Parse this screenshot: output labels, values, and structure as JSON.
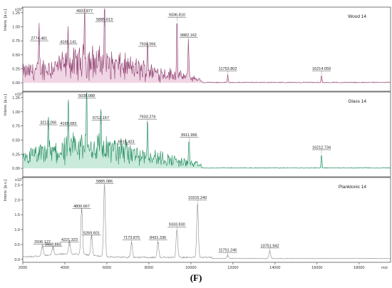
{
  "figure": {
    "caption": "(F)"
  },
  "chart_data": [
    {
      "type": "line",
      "series_name": "Wood 14",
      "color": "#8b3a6b",
      "fill": "#e3b3cf",
      "ylabel": "Intens. [a.u.]",
      "y_multiplier": "x10",
      "y_exponent": "4",
      "xlim": [
        2000,
        19500
      ],
      "ylim": [
        -0.15,
        1.35
      ],
      "yticks": [
        "0.00",
        "0.25",
        "0.50",
        "0.75",
        "1.00",
        "1.25"
      ],
      "ytick_values": [
        0,
        0.25,
        0.5,
        0.75,
        1.0,
        1.25
      ],
      "peaks": [
        {
          "x": 2774.481,
          "y": 0.68,
          "label": "2774.481"
        },
        {
          "x": 4165.141,
          "y": 0.62,
          "label": "4165.141"
        },
        {
          "x": 4937.877,
          "y": 1.2,
          "label": "4937.877"
        },
        {
          "x": 5885.613,
          "y": 1.02,
          "label": "5885.613"
        },
        {
          "x": 7934.066,
          "y": 0.58,
          "label": "7934.066"
        },
        {
          "x": 9336.81,
          "y": 1.1,
          "label": "9336.810"
        },
        {
          "x": 9882.162,
          "y": 0.74,
          "label": "9882.162"
        },
        {
          "x": 11753.802,
          "y": 0.14,
          "label": "11753.802"
        },
        {
          "x": 16214.059,
          "y": 0.14,
          "label": "16214.059"
        }
      ]
    },
    {
      "type": "line",
      "series_name": "Glass 14",
      "color": "#1e8a5c",
      "fill": "#9fd9bd",
      "ylabel": "Intens. [a.u.]",
      "y_multiplier": "x10",
      "y_exponent": "4",
      "xlim": [
        2000,
        19500
      ],
      "ylim": [
        -0.15,
        1.35
      ],
      "yticks": [
        "0.00",
        "0.25",
        "0.50",
        "0.75",
        "1.00",
        "1.25"
      ],
      "ytick_values": [
        0,
        0.25,
        0.5,
        0.75,
        1.0,
        1.25
      ],
      "peaks": [
        {
          "x": 3213.266,
          "y": 0.7,
          "label": "3213.266"
        },
        {
          "x": 4165.083,
          "y": 0.68,
          "label": "4165.083"
        },
        {
          "x": 5038.088,
          "y": 1.22,
          "label": "5038.088"
        },
        {
          "x": 5712.157,
          "y": 0.78,
          "label": "5712.157"
        },
        {
          "x": 6915.423,
          "y": 0.36,
          "label": "6915.423"
        },
        {
          "x": 7933.276,
          "y": 0.8,
          "label": "7933.276"
        },
        {
          "x": 9911.996,
          "y": 0.48,
          "label": "9911.996"
        },
        {
          "x": 16212.734,
          "y": 0.26,
          "label": "16212.734"
        }
      ]
    },
    {
      "type": "line",
      "series_name": "Planktonic 14",
      "color": "#8c8c8c",
      "fill": "none",
      "ylabel": "Intens. [a.u.]",
      "y_multiplier": "x10",
      "y_exponent": "4",
      "xlabel": "m/z",
      "xlim": [
        2000,
        19500
      ],
      "ylim": [
        -0.1,
        2.75
      ],
      "yticks": [
        "0.0",
        "0.5",
        "1.0",
        "1.5",
        "2.0",
        "2.5"
      ],
      "ytick_values": [
        0,
        0.5,
        1.0,
        1.5,
        2.0,
        2.5
      ],
      "xticks": [
        "2000",
        "4000",
        "6000",
        "8000",
        "10000",
        "12000",
        "14000",
        "16000",
        "18000"
      ],
      "xtick_values": [
        2000,
        4000,
        6000,
        8000,
        10000,
        12000,
        14000,
        16000,
        18000
      ],
      "peaks": [
        {
          "x": 2936.127,
          "y": 0.38,
          "label": "2936.127"
        },
        {
          "x": 3433.883,
          "y": 0.3,
          "label": "3433.883"
        },
        {
          "x": 4221.323,
          "y": 0.45,
          "label": "4221.323"
        },
        {
          "x": 4800.667,
          "y": 1.58,
          "label": "4800.667"
        },
        {
          "x": 5269.601,
          "y": 0.68,
          "label": "5269.601"
        },
        {
          "x": 5885.086,
          "y": 2.48,
          "label": "5885.086"
        },
        {
          "x": 7173.875,
          "y": 0.52,
          "label": "7173.875"
        },
        {
          "x": 8431.336,
          "y": 0.52,
          "label": "8431.336"
        },
        {
          "x": 9333.83,
          "y": 0.96,
          "label": "9333.830"
        },
        {
          "x": 10315.24,
          "y": 1.86,
          "label": "10315.240"
        },
        {
          "x": 11751.246,
          "y": 0.1,
          "label": "11751.246"
        },
        {
          "x": 13751.942,
          "y": 0.25,
          "label": "13751.942"
        }
      ]
    }
  ]
}
